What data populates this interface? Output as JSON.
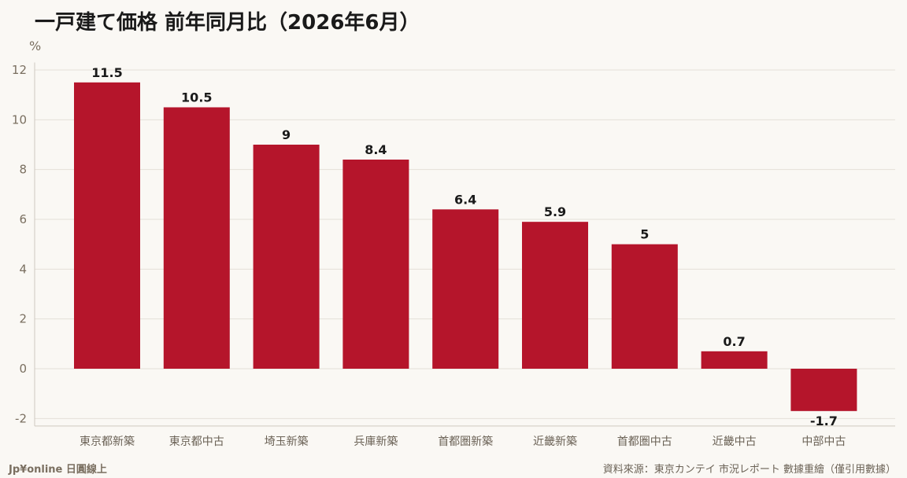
{
  "header": {
    "title": "一戸建て価格 前年同月比（2026年6月）",
    "unit": "%"
  },
  "footer": {
    "brand": "Jp¥online 日圓線上",
    "source": "資料來源：東京カンテイ 市況レポート 數據重繪（僅引用數據）"
  },
  "colors": {
    "bar": "#b5152b",
    "grid": "#e4e0d8",
    "axis": "#cfc9bf",
    "background": "#faf8f4"
  },
  "chart_data": {
    "type": "bar",
    "title": "一戸建て価格 前年同月比（2026年6月）",
    "ylabel": "%",
    "xlabel": "",
    "ylim": [
      -2.3,
      12.3
    ],
    "yticks": [
      -2,
      0,
      2,
      4,
      6,
      8,
      10,
      12
    ],
    "grid": true,
    "categories": [
      "東京都新築",
      "東京都中古",
      "埼玉新築",
      "兵庫新築",
      "首都圏新築",
      "近畿新築",
      "首都圏中古",
      "近畿中古",
      "中部中古"
    ],
    "values": [
      11.5,
      10.5,
      9,
      8.4,
      6.4,
      5.9,
      5,
      0.7,
      -1.7
    ],
    "value_labels": [
      "11.5",
      "10.5",
      "9",
      "8.4",
      "6.4",
      "5.9",
      "5",
      "0.7",
      "-1.7"
    ]
  }
}
